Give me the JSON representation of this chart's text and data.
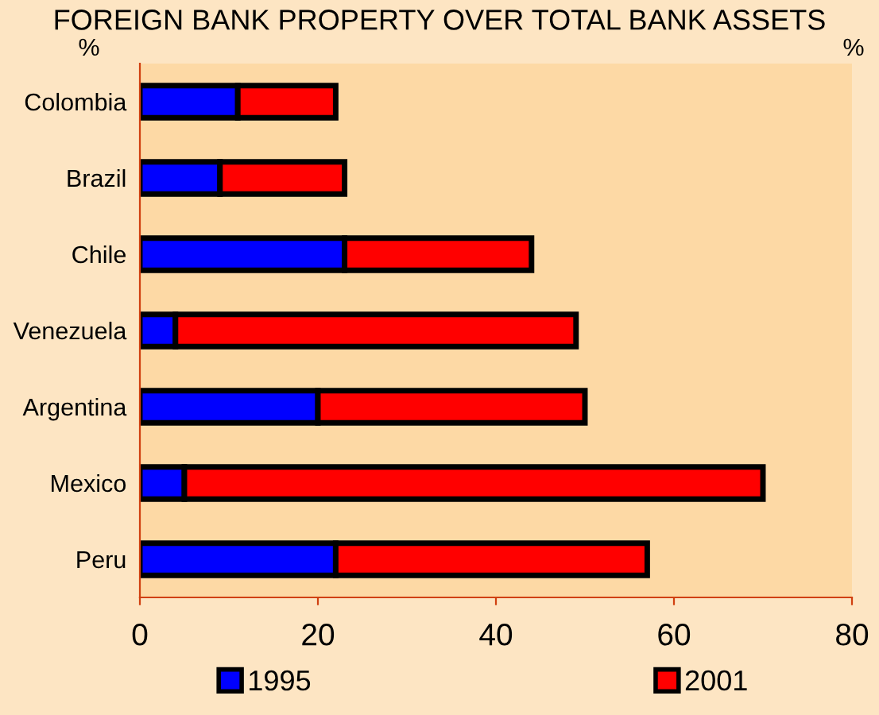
{
  "chart_data": {
    "type": "bar",
    "orientation": "horizontal",
    "stacked": true,
    "title": "FOREIGN BANK PROPERTY OVER TOTAL BANK ASSETS",
    "annotations": [
      "%",
      "%"
    ],
    "categories": [
      "Colombia",
      "Brazil",
      "Chile",
      "Venezuela",
      "Argentina",
      "Mexico",
      "Peru"
    ],
    "series": [
      {
        "name": "1995",
        "color": "#0000ff",
        "values": [
          11,
          9,
          23,
          4,
          20,
          5,
          22
        ]
      },
      {
        "name": "2001",
        "color": "#ff0000",
        "values": [
          11,
          14,
          21,
          45,
          30,
          65,
          35
        ]
      }
    ],
    "xlim": [
      0,
      80
    ],
    "xticks": [
      0,
      20,
      40,
      60,
      80
    ],
    "grid": false,
    "legend": "bottom"
  }
}
